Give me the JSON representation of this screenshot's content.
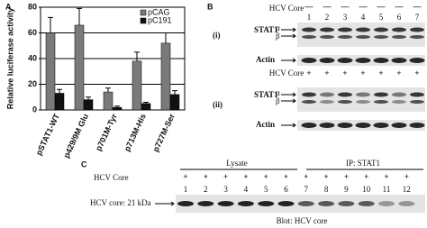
{
  "chart_data": {
    "type": "bar",
    "panel_label": "A",
    "y_label": "Relative luciferase activity",
    "categories": [
      "pSTAT1-WT",
      "p429/9M Glu",
      "p701M-Tyr",
      "p713M-His",
      "p727M-Ser"
    ],
    "series": [
      {
        "name": "pCAG",
        "color": "#7a7a7a",
        "values": [
          60,
          66,
          14,
          38,
          52
        ],
        "errors": [
          12,
          13,
          3,
          7,
          8
        ]
      },
      {
        "name": "pC191",
        "color": "#111111",
        "values": [
          13,
          8,
          2,
          5,
          12
        ],
        "errors": [
          3,
          2,
          1,
          1,
          3
        ]
      }
    ],
    "ylim": [
      0,
      80
    ],
    "yticks": [
      0,
      20,
      40,
      60,
      80
    ],
    "grid": true,
    "legend": "upper right"
  },
  "panel_b": {
    "label": "B",
    "part_i": {
      "label": "(i)",
      "row_label": "HCV Core",
      "signs": [
        "—",
        "—",
        "—",
        "—",
        "—",
        "—",
        "—"
      ],
      "lanes": [
        "1",
        "2",
        "3",
        "4",
        "5",
        "6",
        "7"
      ],
      "stat1": "STAT1",
      "alpha": "α",
      "beta": "β",
      "actin": "Actin"
    },
    "part_ii": {
      "label": "(ii)",
      "row_label": "HCV Core",
      "signs": [
        "+",
        "+",
        "+",
        "+",
        "+",
        "+",
        "+"
      ],
      "stat1": "STAT1",
      "alpha": "α",
      "beta": "β",
      "actin": "Actin"
    }
  },
  "panel_c": {
    "label": "C",
    "row_label": "HCV Core",
    "lysate": "Lysate",
    "ip": "IP: STAT1",
    "signs": [
      "+",
      "+",
      "+",
      "+",
      "+",
      "+",
      "+",
      "+",
      "+",
      "+",
      "+",
      "+"
    ],
    "lanes": [
      "1",
      "2",
      "3",
      "4",
      "5",
      "6",
      "7",
      "8",
      "9",
      "10",
      "11",
      "12"
    ],
    "band_label": "HCV core: 21 kDa",
    "blot": "Blot: HCV core"
  }
}
